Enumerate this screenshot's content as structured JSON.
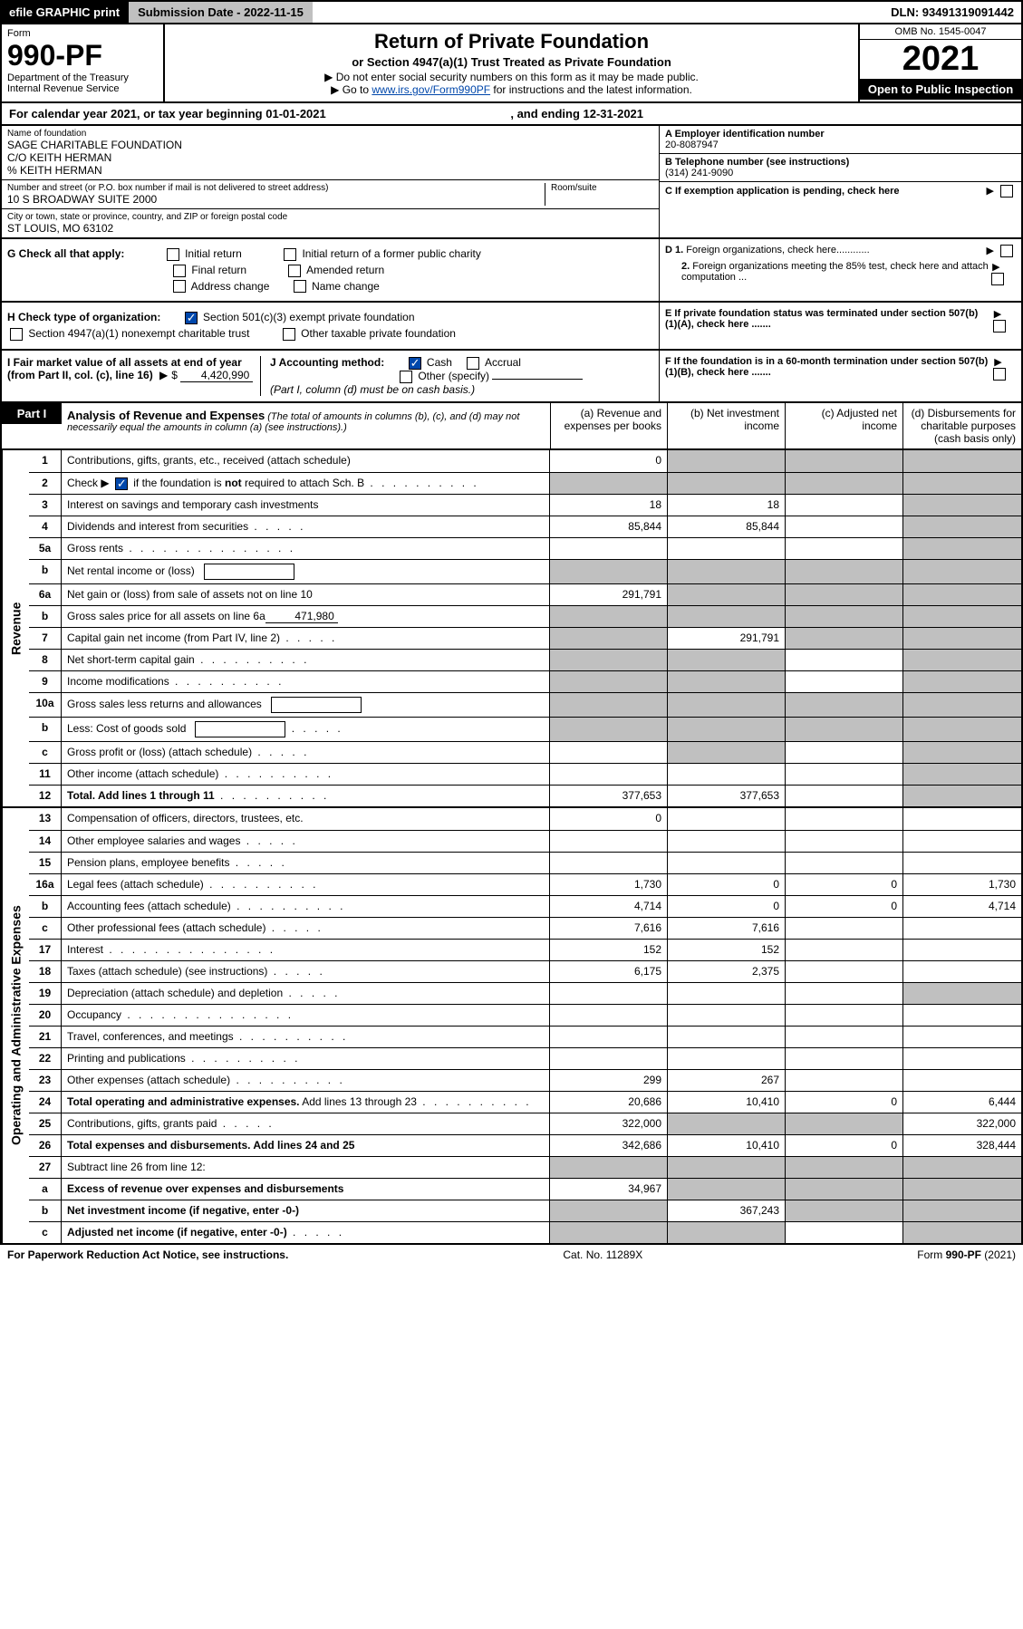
{
  "header": {
    "efile_label": "efile GRAPHIC print",
    "submission_label": "Submission Date - 2022-11-15",
    "dln": "DLN: 93491319091442"
  },
  "form": {
    "label": "Form",
    "number": "990-PF",
    "dept1": "Department of the Treasury",
    "dept2": "Internal Revenue Service",
    "title": "Return of Private Foundation",
    "subtitle": "or Section 4947(a)(1) Trust Treated as Private Foundation",
    "instr1": "▶ Do not enter social security numbers on this form as it may be made public.",
    "instr2_pre": "▶ Go to ",
    "instr2_link": "www.irs.gov/Form990PF",
    "instr2_post": " for instructions and the latest information.",
    "omb": "OMB No. 1545-0047",
    "year": "2021",
    "open": "Open to Public Inspection"
  },
  "calendar": {
    "text_pre": "For calendar year 2021, or tax year beginning ",
    "begin": "01-01-2021",
    "text_mid": " , and ending ",
    "end": "12-31-2021"
  },
  "foundation": {
    "name_label": "Name of foundation",
    "name": "SAGE CHARITABLE FOUNDATION",
    "care1": "C/O KEITH HERMAN",
    "care2": "% KEITH HERMAN",
    "addr_label": "Number and street (or P.O. box number if mail is not delivered to street address)",
    "addr": "10 S BROADWAY SUITE 2000",
    "room_label": "Room/suite",
    "city_label": "City or town, state or province, country, and ZIP or foreign postal code",
    "city": "ST LOUIS, MO  63102",
    "ein_label": "A Employer identification number",
    "ein": "20-8087947",
    "phone_label": "B Telephone number (see instructions)",
    "phone": "(314) 241-9090",
    "c_label": "C If exemption application is pending, check here"
  },
  "checks": {
    "g_label": "G Check all that apply:",
    "g_initial": "Initial return",
    "g_initial_former": "Initial return of a former public charity",
    "g_final": "Final return",
    "g_amended": "Amended return",
    "g_address": "Address change",
    "g_name": "Name change",
    "h_label": "H Check type of organization:",
    "h_501c3": "Section 501(c)(3) exempt private foundation",
    "h_4947": "Section 4947(a)(1) nonexempt charitable trust",
    "h_other": "Other taxable private foundation",
    "i_label": "I Fair market value of all assets at end of year (from Part II, col. (c), line 16)",
    "i_value": "4,420,990",
    "j_label": "J Accounting method:",
    "j_cash": "Cash",
    "j_accrual": "Accrual",
    "j_other": "Other (specify)",
    "j_note": "(Part I, column (d) must be on cash basis.)",
    "d1": "D 1. Foreign organizations, check here",
    "d2": "2. Foreign organizations meeting the 85% test, check here and attach computation ...",
    "e": "E  If private foundation status was terminated under section 507(b)(1)(A), check here .......",
    "f": "F  If the foundation is in a 60-month termination under section 507(b)(1)(B), check here .......",
    "arrow": "▶"
  },
  "part1": {
    "label": "Part I",
    "title": "Analysis of Revenue and Expenses",
    "title_note": " (The total of amounts in columns (b), (c), and (d) may not necessarily equal the amounts in column (a) (see instructions).)",
    "col_a": "(a)   Revenue and expenses per books",
    "col_b": "(b)   Net investment income",
    "col_c": "(c)   Adjusted net income",
    "col_d": "(d)   Disbursements for charitable purposes (cash basis only)"
  },
  "sections": {
    "revenue": "Revenue",
    "expenses": "Operating and Administrative Expenses"
  },
  "rows": [
    {
      "num": "1",
      "desc": "Contributions, gifts, grants, etc., received (attach schedule)",
      "a": "0",
      "b_grey": true,
      "c_grey": true,
      "d_grey": true
    },
    {
      "num": "2",
      "desc": "Check ▶ ☑ if the foundation is not required to attach Sch. B",
      "dotted": true,
      "a_grey": true,
      "b_grey": true,
      "c_grey": true,
      "d_grey": true,
      "checknote": true
    },
    {
      "num": "3",
      "desc": "Interest on savings and temporary cash investments",
      "a": "18",
      "b": "18",
      "d_grey": true
    },
    {
      "num": "4",
      "desc": "Dividends and interest from securities",
      "dotted": "short",
      "a": "85,844",
      "b": "85,844",
      "d_grey": true
    },
    {
      "num": "5a",
      "desc": "Gross rents",
      "dotted": "long",
      "d_grey": true
    },
    {
      "num": "b",
      "desc": "Net rental income or (loss)",
      "inline_box": true,
      "a_grey": true,
      "b_grey": true,
      "c_grey": true,
      "d_grey": true
    },
    {
      "num": "6a",
      "desc": "Net gain or (loss) from sale of assets not on line 10",
      "a": "291,791",
      "b_grey": true,
      "c_grey": true,
      "d_grey": true
    },
    {
      "num": "b",
      "desc": "Gross sales price for all assets on line 6a",
      "inline_val": "471,980",
      "a_grey": true,
      "b_grey": true,
      "c_grey": true,
      "d_grey": true
    },
    {
      "num": "7",
      "desc": "Capital gain net income (from Part IV, line 2)",
      "dotted": "short",
      "a_grey": true,
      "b": "291,791",
      "c_grey": true,
      "d_grey": true
    },
    {
      "num": "8",
      "desc": "Net short-term capital gain",
      "dotted": true,
      "a_grey": true,
      "b_grey": true,
      "d_grey": true
    },
    {
      "num": "9",
      "desc": "Income modifications",
      "dotted": true,
      "a_grey": true,
      "b_grey": true,
      "d_grey": true
    },
    {
      "num": "10a",
      "desc": "Gross sales less returns and allowances",
      "inline_box": true,
      "a_grey": true,
      "b_grey": true,
      "c_grey": true,
      "d_grey": true
    },
    {
      "num": "b",
      "desc": "Less: Cost of goods sold",
      "dotted": "short",
      "inline_box": true,
      "a_grey": true,
      "b_grey": true,
      "c_grey": true,
      "d_grey": true
    },
    {
      "num": "c",
      "desc": "Gross profit or (loss) (attach schedule)",
      "dotted": "short",
      "b_grey": true,
      "d_grey": true
    },
    {
      "num": "11",
      "desc": "Other income (attach schedule)",
      "dotted": true,
      "d_grey": true
    },
    {
      "num": "12",
      "desc": "Total. Add lines 1 through 11",
      "dotted": true,
      "bold": true,
      "a": "377,653",
      "b": "377,653",
      "d_grey": true
    }
  ],
  "exp_rows": [
    {
      "num": "13",
      "desc": "Compensation of officers, directors, trustees, etc.",
      "a": "0"
    },
    {
      "num": "14",
      "desc": "Other employee salaries and wages",
      "dotted": "short"
    },
    {
      "num": "15",
      "desc": "Pension plans, employee benefits",
      "dotted": "short"
    },
    {
      "num": "16a",
      "desc": "Legal fees (attach schedule)",
      "dotted": true,
      "a": "1,730",
      "b": "0",
      "c": "0",
      "d": "1,730"
    },
    {
      "num": "b",
      "desc": "Accounting fees (attach schedule)",
      "dotted": true,
      "a": "4,714",
      "b": "0",
      "c": "0",
      "d": "4,714"
    },
    {
      "num": "c",
      "desc": "Other professional fees (attach schedule)",
      "dotted": "short",
      "a": "7,616",
      "b": "7,616"
    },
    {
      "num": "17",
      "desc": "Interest",
      "dotted": "long",
      "a": "152",
      "b": "152"
    },
    {
      "num": "18",
      "desc": "Taxes (attach schedule) (see instructions)",
      "dotted": "short",
      "a": "6,175",
      "b": "2,375"
    },
    {
      "num": "19",
      "desc": "Depreciation (attach schedule) and depletion",
      "dotted": "short",
      "d_grey": true
    },
    {
      "num": "20",
      "desc": "Occupancy",
      "dotted": "long"
    },
    {
      "num": "21",
      "desc": "Travel, conferences, and meetings",
      "dotted": true
    },
    {
      "num": "22",
      "desc": "Printing and publications",
      "dotted": true
    },
    {
      "num": "23",
      "desc": "Other expenses (attach schedule)",
      "dotted": true,
      "a": "299",
      "b": "267"
    },
    {
      "num": "24",
      "desc": "Total operating and administrative expenses. Add lines 13 through 23",
      "dotted": true,
      "bold_first": true,
      "a": "20,686",
      "b": "10,410",
      "c": "0",
      "d": "6,444"
    },
    {
      "num": "25",
      "desc": "Contributions, gifts, grants paid",
      "dotted": "short",
      "a": "322,000",
      "b_grey": true,
      "c_grey": true,
      "d": "322,000"
    },
    {
      "num": "26",
      "desc": "Total expenses and disbursements. Add lines 24 and 25",
      "bold": true,
      "a": "342,686",
      "b": "10,410",
      "c": "0",
      "d": "328,444"
    },
    {
      "num": "27",
      "desc": "Subtract line 26 from line 12:",
      "a_grey": true,
      "b_grey": true,
      "c_grey": true,
      "d_grey": true
    },
    {
      "num": "a",
      "desc": "Excess of revenue over expenses and disbursements",
      "bold": true,
      "a": "34,967",
      "b_grey": true,
      "c_grey": true,
      "d_grey": true
    },
    {
      "num": "b",
      "desc": "Net investment income (if negative, enter -0-)",
      "bold": true,
      "a_grey": true,
      "b": "367,243",
      "c_grey": true,
      "d_grey": true
    },
    {
      "num": "c",
      "desc": "Adjusted net income (if negative, enter -0-)",
      "bold": true,
      "dotted": "short",
      "a_grey": true,
      "b_grey": true,
      "d_grey": true
    }
  ],
  "footer": {
    "left": "For Paperwork Reduction Act Notice, see instructions.",
    "center": "Cat. No. 11289X",
    "right": "Form 990-PF (2021)"
  }
}
